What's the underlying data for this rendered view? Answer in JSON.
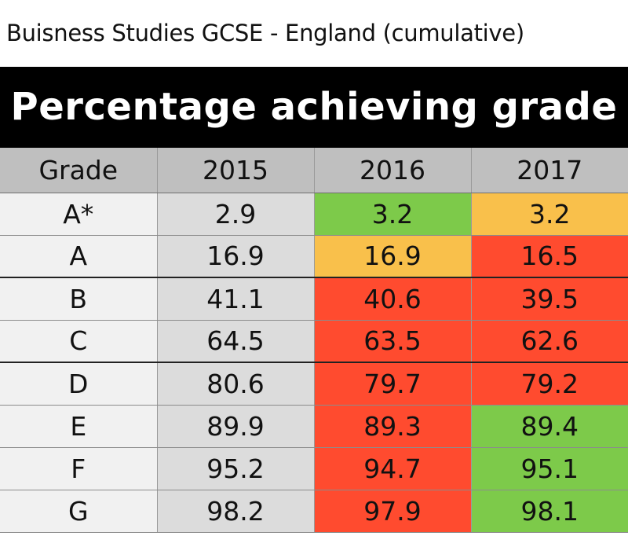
{
  "page": {
    "title": "Buisness Studies  GCSE - England (cumulative)"
  },
  "table": {
    "heading": "Percentage achieving grade",
    "columns": [
      "Grade",
      "2015",
      "2016",
      "2017"
    ],
    "rows": [
      {
        "grade": "A*",
        "v2015": "2.9",
        "v2016": "3.2",
        "v2017": "3.2"
      },
      {
        "grade": "A",
        "v2015": "16.9",
        "v2016": "16.9",
        "v2017": "16.5"
      },
      {
        "grade": "B",
        "v2015": "41.1",
        "v2016": "40.6",
        "v2017": "39.5"
      },
      {
        "grade": "C",
        "v2015": "64.5",
        "v2016": "63.5",
        "v2017": "62.6"
      },
      {
        "grade": "D",
        "v2015": "80.6",
        "v2016": "79.7",
        "v2017": "79.2"
      },
      {
        "grade": "E",
        "v2015": "89.9",
        "v2016": "89.3",
        "v2017": "89.4"
      },
      {
        "grade": "F",
        "v2015": "95.2",
        "v2016": "94.7",
        "v2017": "95.1"
      },
      {
        "grade": "G",
        "v2015": "98.2",
        "v2016": "97.9",
        "v2017": "98.1"
      }
    ]
  },
  "colors": {
    "increase": "#7dca4a",
    "no_change": "#f9c04b",
    "decrease": "#ff4b2f",
    "header_bg": "#bfbfbf",
    "banner_bg": "#000000"
  },
  "chart_data": {
    "type": "table",
    "title": "Percentage achieving grade",
    "columns": [
      "Grade",
      "2015",
      "2016",
      "2017"
    ],
    "rows": [
      [
        "A*",
        2.9,
        3.2,
        3.2
      ],
      [
        "A",
        16.9,
        16.9,
        16.5
      ],
      [
        "B",
        41.1,
        40.6,
        39.5
      ],
      [
        "C",
        64.5,
        63.5,
        62.6
      ],
      [
        "D",
        80.6,
        79.7,
        79.2
      ],
      [
        "E",
        89.9,
        89.3,
        89.4
      ],
      [
        "F",
        95.2,
        94.7,
        95.1
      ],
      [
        "G",
        98.2,
        97.9,
        98.1
      ]
    ],
    "cell_colors": {
      "2016": [
        "#7dca4a",
        "#f9c04b",
        "#ff4b2f",
        "#ff4b2f",
        "#ff4b2f",
        "#ff4b2f",
        "#ff4b2f",
        "#ff4b2f"
      ],
      "2017": [
        "#f9c04b",
        "#ff4b2f",
        "#ff4b2f",
        "#ff4b2f",
        "#ff4b2f",
        "#7dca4a",
        "#7dca4a",
        "#7dca4a"
      ]
    }
  }
}
